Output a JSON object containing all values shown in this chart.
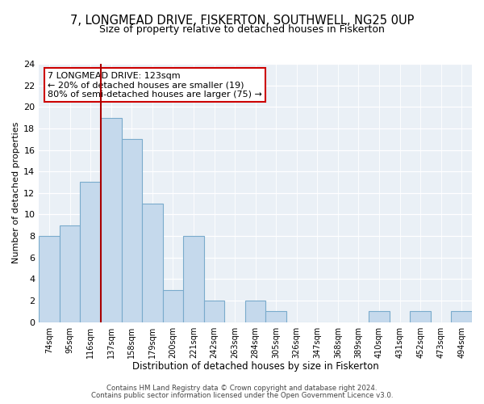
{
  "title": "7, LONGMEAD DRIVE, FISKERTON, SOUTHWELL, NG25 0UP",
  "subtitle": "Size of property relative to detached houses in Fiskerton",
  "xlabel": "Distribution of detached houses by size in Fiskerton",
  "ylabel": "Number of detached properties",
  "bar_labels": [
    "74sqm",
    "95sqm",
    "116sqm",
    "137sqm",
    "158sqm",
    "179sqm",
    "200sqm",
    "221sqm",
    "242sqm",
    "263sqm",
    "284sqm",
    "305sqm",
    "326sqm",
    "347sqm",
    "368sqm",
    "389sqm",
    "410sqm",
    "431sqm",
    "452sqm",
    "473sqm",
    "494sqm"
  ],
  "bar_values": [
    8,
    9,
    13,
    19,
    17,
    11,
    3,
    8,
    2,
    0,
    2,
    1,
    0,
    0,
    0,
    0,
    1,
    0,
    1,
    0,
    1
  ],
  "bar_color": "#c5d9ec",
  "bar_edge_color": "#7aabcc",
  "vline_x": 2.5,
  "vline_color": "#aa0000",
  "ylim": [
    0,
    24
  ],
  "yticks": [
    0,
    2,
    4,
    6,
    8,
    10,
    12,
    14,
    16,
    18,
    20,
    22,
    24
  ],
  "annotation_text": "7 LONGMEAD DRIVE: 123sqm\n← 20% of detached houses are smaller (19)\n80% of semi-detached houses are larger (75) →",
  "annotation_box_color": "#ffffff",
  "annotation_box_edge": "#cc0000",
  "footer_line1": "Contains HM Land Registry data © Crown copyright and database right 2024.",
  "footer_line2": "Contains public sector information licensed under the Open Government Licence v3.0.",
  "plot_bg_color": "#eaf0f6",
  "title_fontsize": 10.5,
  "subtitle_fontsize": 9
}
